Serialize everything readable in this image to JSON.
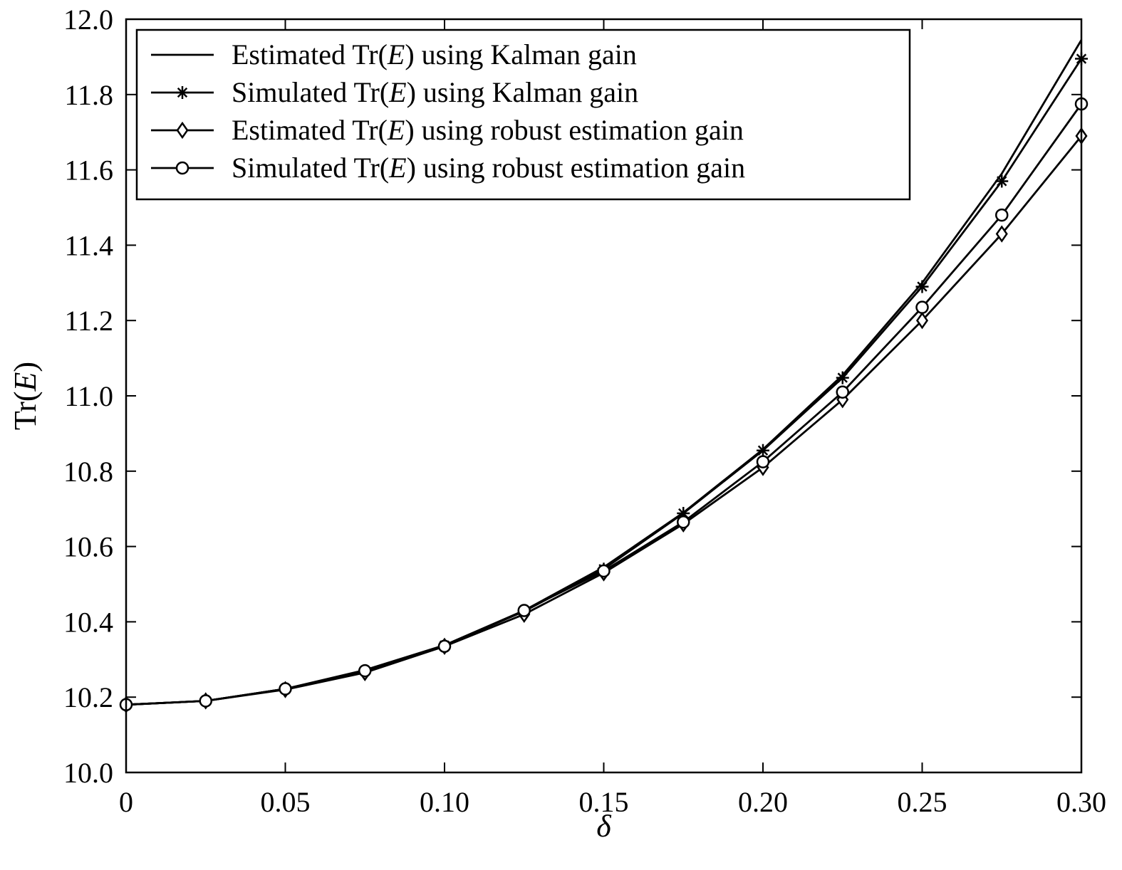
{
  "chart_data": {
    "type": "line",
    "title": "",
    "xlabel": "δ",
    "ylabel": {
      "prefix": "Tr(",
      "var": "E",
      "suffix": ")"
    },
    "xlim": [
      0,
      0.3
    ],
    "ylim": [
      10.0,
      12.0
    ],
    "grid": false,
    "legend_position": "top-left",
    "x_ticks": [
      0,
      0.05,
      0.1,
      0.15,
      0.2,
      0.25,
      0.3
    ],
    "x_tick_labels": [
      "0",
      "0.05",
      "0.10",
      "0.15",
      "0.20",
      "0.25",
      "0.30"
    ],
    "y_ticks": [
      10.0,
      10.2,
      10.4,
      10.6,
      10.8,
      11.0,
      11.2,
      11.4,
      11.6,
      11.8,
      12.0
    ],
    "y_tick_labels": [
      "10.0",
      "10.2",
      "10.4",
      "10.6",
      "10.8",
      "11.0",
      "11.2",
      "11.4",
      "11.6",
      "11.8",
      "12.0"
    ],
    "x": [
      0,
      0.025,
      0.05,
      0.075,
      0.1,
      0.125,
      0.15,
      0.175,
      0.2,
      0.225,
      0.25,
      0.275,
      0.3
    ],
    "series": [
      {
        "name": "Estimated Tr(E) using Kalman gain",
        "legend": {
          "before": "Estimated Tr(",
          "var": "E",
          "after": ") using Kalman gain"
        },
        "marker": "none",
        "values": [
          10.18,
          10.19,
          10.222,
          10.272,
          10.338,
          10.43,
          10.545,
          10.69,
          10.858,
          11.055,
          11.3,
          11.59,
          11.945
        ]
      },
      {
        "name": "Simulated Tr(E) using Kalman gain",
        "legend": {
          "before": "Simulated Tr(",
          "var": "E",
          "after": ") using Kalman gain"
        },
        "marker": "asterisk",
        "values": [
          10.18,
          10.19,
          10.222,
          10.27,
          10.337,
          10.428,
          10.54,
          10.688,
          10.855,
          11.048,
          11.29,
          11.57,
          11.895
        ]
      },
      {
        "name": "Estimated Tr(E) using robust estimation gain",
        "legend": {
          "before": "Estimated Tr(",
          "var": "E",
          "after": ") using robust estimation gain"
        },
        "marker": "diamond",
        "values": [
          10.18,
          10.19,
          10.22,
          10.265,
          10.335,
          10.42,
          10.53,
          10.66,
          10.81,
          10.99,
          11.2,
          11.43,
          11.69
        ]
      },
      {
        "name": "Simulated Tr(E) using robust estimation gain",
        "legend": {
          "before": "Simulated Tr(",
          "var": "E",
          "after": ") using robust estimation gain"
        },
        "marker": "circle",
        "values": [
          10.18,
          10.19,
          10.222,
          10.27,
          10.335,
          10.43,
          10.535,
          10.665,
          10.825,
          11.01,
          11.235,
          11.48,
          11.775
        ]
      }
    ]
  }
}
